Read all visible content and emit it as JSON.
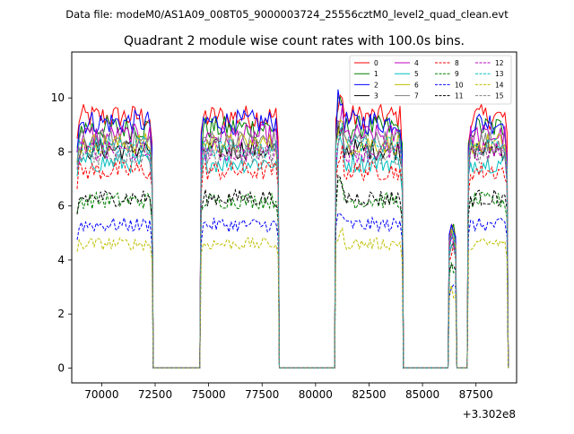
{
  "suptitle": "Data file: modeM0/AS1A09_008T05_9000003724_25556cztM0_level2_quad_clean.evt",
  "chart_data": {
    "type": "line",
    "title": "Quadrant 2 module wise count rates with 100.0s bins.",
    "xlabel": "",
    "ylabel": "",
    "x_offset_label": "+3.302e8",
    "x_offset": 330200000,
    "xlim": [
      68600,
      89400
    ],
    "ylim": [
      -0.55,
      11.7
    ],
    "x_ticks": [
      70000,
      72500,
      75000,
      77500,
      80000,
      82500,
      85000,
      87500
    ],
    "x_tick_labels": [
      "70000",
      "72500",
      "75000",
      "77500",
      "80000",
      "82500",
      "85000",
      "87500"
    ],
    "y_ticks": [
      0,
      2,
      4,
      6,
      8,
      10
    ],
    "y_tick_labels": [
      "0",
      "2",
      "4",
      "6",
      "8",
      "10"
    ],
    "bin_seconds": 100,
    "segments": [
      {
        "start": 68850,
        "end": 72350
      },
      {
        "start": 74650,
        "end": 78250
      },
      {
        "start": 80950,
        "end": 84050
      },
      {
        "start": 86250,
        "end": 86550
      },
      {
        "start": 87150,
        "end": 88950
      }
    ],
    "series": [
      {
        "name": "0",
        "color": "#ff0000",
        "dash": "solid",
        "level": 9.3
      },
      {
        "name": "1",
        "color": "#008000",
        "dash": "solid",
        "level": 8.9
      },
      {
        "name": "2",
        "color": "#0000ff",
        "dash": "solid",
        "level": 9.1
      },
      {
        "name": "3",
        "color": "#000000",
        "dash": "solid",
        "level": 8.1
      },
      {
        "name": "4",
        "color": "#bf00bf",
        "dash": "solid",
        "level": 8.6
      },
      {
        "name": "5",
        "color": "#00bfbf",
        "dash": "solid",
        "level": 7.6
      },
      {
        "name": "6",
        "color": "#bfbf00",
        "dash": "solid",
        "level": 8.3
      },
      {
        "name": "7",
        "color": "#808080",
        "dash": "solid",
        "level": 8.4
      },
      {
        "name": "8",
        "color": "#ff0000",
        "dash": "dashed",
        "level": 7.3
      },
      {
        "name": "9",
        "color": "#008000",
        "dash": "dashed",
        "level": 6.2
      },
      {
        "name": "10",
        "color": "#0000ff",
        "dash": "dashed",
        "level": 5.3
      },
      {
        "name": "11",
        "color": "#000000",
        "dash": "dashed",
        "level": 6.3
      },
      {
        "name": "12",
        "color": "#bf00bf",
        "dash": "dashed",
        "level": 8.0
      },
      {
        "name": "13",
        "color": "#00bfbf",
        "dash": "dashed",
        "level": 8.2
      },
      {
        "name": "14",
        "color": "#bfbf00",
        "dash": "dashed",
        "level": 4.6
      },
      {
        "name": "15",
        "color": "#808080",
        "dash": "dashed",
        "level": 7.9
      }
    ],
    "legend": {
      "position": "upper-right",
      "columns": 4
    }
  }
}
